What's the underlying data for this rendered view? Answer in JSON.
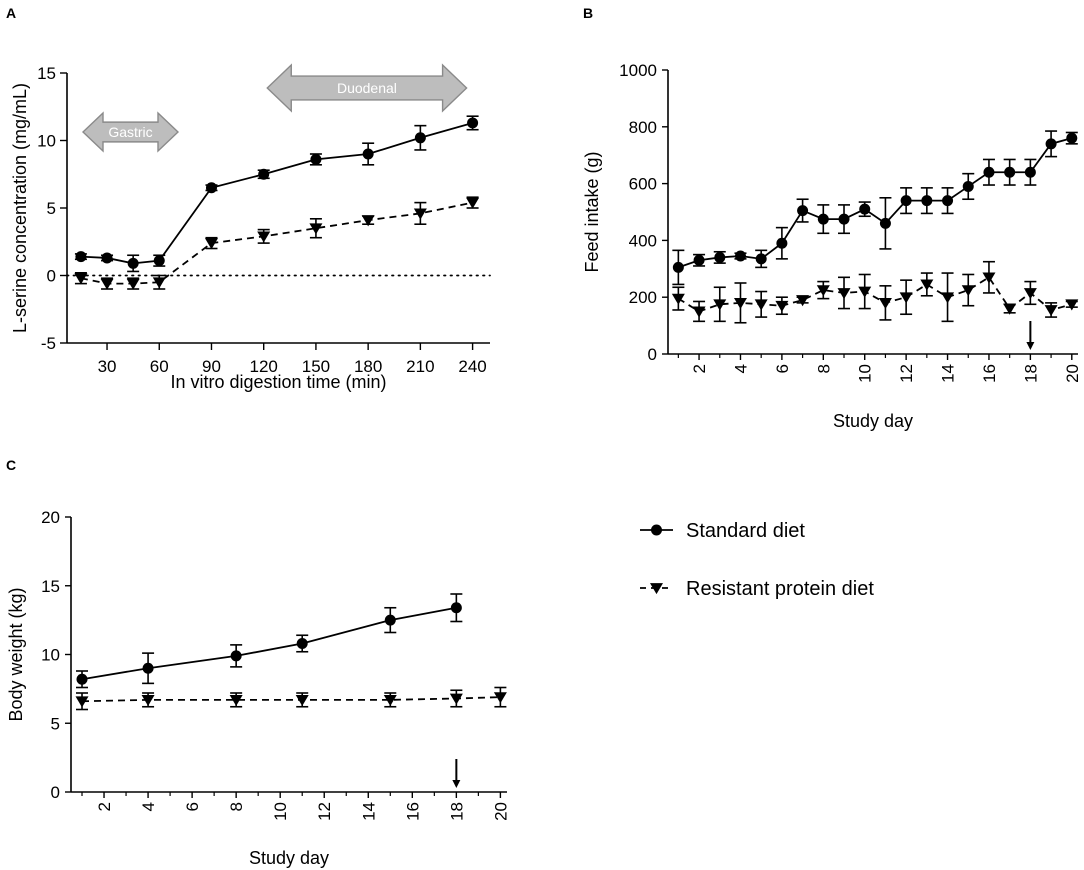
{
  "legend": {
    "items": [
      {
        "label": "Standard diet",
        "marker": "circle",
        "dash": "solid"
      },
      {
        "label": "Resistant protein diet",
        "marker": "triangle-down",
        "dash": "dashed"
      }
    ]
  },
  "chart_data": [
    {
      "panel": "A",
      "type": "line",
      "xlabel": "In vitro digestion time (min)",
      "ylabel": "L-serine concentration (mg/mL)",
      "xlim": [
        7,
        250
      ],
      "ylim": [
        -5,
        15
      ],
      "xticks": [
        30,
        60,
        90,
        120,
        150,
        180,
        210,
        240
      ],
      "yticks": [
        -5,
        0,
        5,
        10,
        15
      ],
      "reference_line": 0,
      "annotations": [
        {
          "text": "Gastric",
          "from": 0,
          "to": 60
        },
        {
          "text": "Duodenal",
          "from": 60,
          "to": 240
        }
      ],
      "series": [
        {
          "name": "Standard diet",
          "x": [
            15,
            30,
            45,
            60,
            90,
            120,
            150,
            180,
            210,
            240
          ],
          "values": [
            1.4,
            1.3,
            0.9,
            1.1,
            6.5,
            7.5,
            8.6,
            9.0,
            10.2,
            11.3
          ],
          "errors": [
            0.2,
            0.2,
            0.6,
            0.4,
            0.2,
            0.3,
            0.4,
            0.8,
            0.9,
            0.5
          ]
        },
        {
          "name": "Resistant protein diet",
          "x": [
            15,
            30,
            45,
            60,
            90,
            120,
            150,
            180,
            210,
            240
          ],
          "values": [
            -0.2,
            -0.6,
            -0.6,
            -0.5,
            2.4,
            2.9,
            3.5,
            4.1,
            4.6,
            5.4
          ],
          "errors": [
            0.4,
            0.4,
            0.4,
            0.5,
            0.4,
            0.5,
            0.7,
            0.3,
            0.8,
            0.4
          ]
        }
      ]
    },
    {
      "panel": "B",
      "type": "line",
      "xlabel": "Study day",
      "ylabel": "Feed intake (g)",
      "xlim": [
        0.5,
        20.3
      ],
      "ylim": [
        0,
        1000
      ],
      "xticks": [
        2,
        4,
        6,
        8,
        10,
        12,
        14,
        16,
        18,
        20
      ],
      "yticks": [
        0,
        200,
        400,
        600,
        800,
        1000
      ],
      "arrow_at_x": 18,
      "series": [
        {
          "name": "Standard diet",
          "x": [
            1,
            2,
            3,
            4,
            5,
            6,
            7,
            8,
            9,
            10,
            11,
            12,
            13,
            14,
            15,
            16,
            17,
            18,
            19,
            20
          ],
          "values": [
            305,
            330,
            340,
            345,
            335,
            390,
            505,
            475,
            475,
            510,
            460,
            540,
            540,
            540,
            590,
            640,
            640,
            640,
            740,
            760
          ],
          "errors": [
            60,
            20,
            20,
            10,
            30,
            55,
            40,
            50,
            50,
            25,
            90,
            45,
            45,
            45,
            45,
            45,
            45,
            45,
            45,
            20
          ]
        },
        {
          "name": "Resistant protein diet",
          "x": [
            1,
            2,
            3,
            4,
            5,
            6,
            7,
            8,
            9,
            10,
            11,
            12,
            13,
            14,
            15,
            16,
            17,
            18,
            19,
            20
          ],
          "values": [
            195,
            150,
            175,
            180,
            175,
            170,
            190,
            225,
            215,
            220,
            180,
            200,
            245,
            200,
            225,
            270,
            160,
            215,
            155,
            175
          ],
          "errors": [
            40,
            35,
            60,
            70,
            45,
            30,
            10,
            30,
            55,
            60,
            60,
            60,
            40,
            85,
            55,
            55,
            15,
            40,
            25,
            10
          ]
        }
      ]
    },
    {
      "panel": "C",
      "type": "line",
      "xlabel": "Study day",
      "ylabel": "Body weight (kg)",
      "xlim": [
        0.5,
        20.3
      ],
      "ylim": [
        0,
        20
      ],
      "xticks": [
        2,
        4,
        6,
        8,
        10,
        12,
        14,
        16,
        18,
        20
      ],
      "yticks": [
        0,
        5,
        10,
        15,
        20
      ],
      "arrow_at_x": 18,
      "series": [
        {
          "name": "Standard diet",
          "x": [
            1,
            4,
            8,
            11,
            15,
            18
          ],
          "values": [
            8.2,
            9.0,
            9.9,
            10.8,
            12.5,
            13.4
          ],
          "errors": [
            0.6,
            1.1,
            0.8,
            0.6,
            0.9,
            1.0
          ]
        },
        {
          "name": "Resistant protein diet",
          "x": [
            1,
            4,
            8,
            11,
            15,
            18,
            20
          ],
          "values": [
            6.6,
            6.7,
            6.7,
            6.7,
            6.7,
            6.8,
            6.9
          ],
          "errors": [
            0.6,
            0.5,
            0.5,
            0.5,
            0.5,
            0.6,
            0.7
          ]
        }
      ]
    }
  ]
}
